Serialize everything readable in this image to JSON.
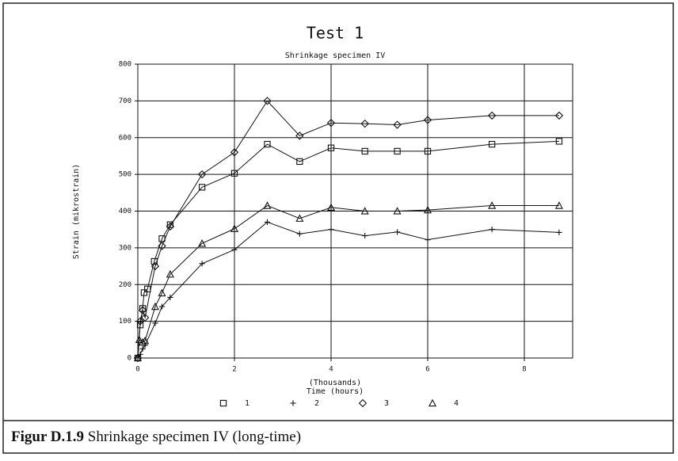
{
  "chart_data": {
    "type": "line",
    "title": "Test 1",
    "subtitle": "Shrinkage specimen IV",
    "ylabel": "Strain (mikrostrain)",
    "xlabel": "Time (hours)",
    "x_unit_note": "(Thousands)",
    "xlim": [
      0,
      9
    ],
    "xticks": [
      0,
      2,
      4,
      6,
      8
    ],
    "ylim": [
      0,
      800
    ],
    "yticks": [
      0,
      100,
      200,
      300,
      400,
      500,
      600,
      700,
      800
    ],
    "grid": true,
    "series": [
      {
        "name": "1",
        "color": "#111111",
        "marker": "square",
        "x": [
          0,
          0.05,
          0.1,
          0.13,
          0.2,
          0.34,
          0.5,
          0.67,
          1.33,
          2,
          2.68,
          3.35,
          4,
          4.7,
          5.37,
          6,
          7.33,
          8.72
        ],
        "values": [
          0,
          90,
          135,
          178,
          188,
          263,
          325,
          363,
          465,
          503,
          582,
          535,
          572,
          563,
          563,
          563,
          582,
          590
        ]
      },
      {
        "name": "2",
        "color": "#111111",
        "marker": "plus",
        "x": [
          0,
          0.05,
          0.1,
          0.15,
          0.36,
          0.5,
          0.67,
          1.33,
          2,
          2.68,
          3.35,
          4,
          4.7,
          5.37,
          6,
          7.33,
          8.72
        ],
        "values": [
          0,
          10,
          25,
          35,
          95,
          140,
          165,
          257,
          295,
          370,
          338,
          350,
          333,
          343,
          322,
          350,
          342
        ]
      },
      {
        "name": "3",
        "color": "#111111",
        "marker": "diamond",
        "x": [
          0,
          0.05,
          0.1,
          0.15,
          0.36,
          0.5,
          0.67,
          1.33,
          2,
          2.68,
          3.35,
          4,
          4.7,
          5.37,
          6,
          7.33,
          8.72
        ],
        "values": [
          0,
          100,
          130,
          110,
          250,
          305,
          358,
          500,
          560,
          700,
          605,
          640,
          638,
          635,
          648,
          660,
          660
        ]
      },
      {
        "name": "4",
        "color": "#111111",
        "marker": "triangle",
        "x": [
          0,
          0.03,
          0.1,
          0.15,
          0.36,
          0.5,
          0.67,
          1.33,
          2,
          2.68,
          3.35,
          4,
          4.7,
          5.37,
          6,
          7.33,
          8.72
        ],
        "values": [
          0,
          50,
          43,
          47,
          140,
          177,
          228,
          312,
          352,
          415,
          380,
          410,
          400,
          400,
          403,
          415,
          415
        ]
      }
    ]
  },
  "caption": {
    "label": "Figur D.1.9",
    "text": "Shrinkage specimen IV (long-time)"
  }
}
